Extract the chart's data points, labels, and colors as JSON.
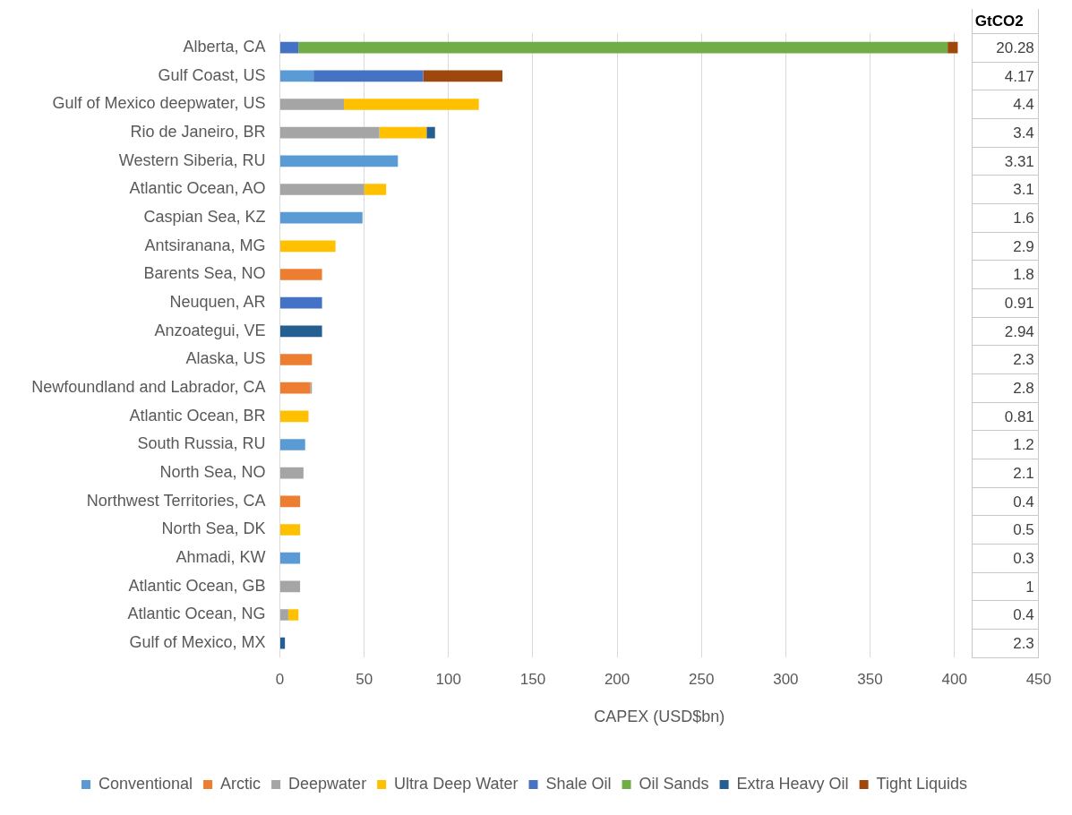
{
  "chart_data": {
    "type": "bar",
    "orientation": "horizontal",
    "stacked": true,
    "xlabel": "CAPEX (USD$bn)",
    "categories": [
      "Alberta, CA",
      "Gulf Coast, US",
      "Gulf of Mexico deepwater, US",
      "Rio de Janeiro, BR",
      "Western Siberia, RU",
      "Atlantic Ocean, AO",
      "Caspian Sea, KZ",
      "Antsiranana, MG",
      "Barents Sea, NO",
      "Neuquen, AR",
      "Anzoategui, VE",
      "Alaska, US",
      "Newfoundland and Labrador, CA",
      "Atlantic Ocean, BR",
      "South Russia, RU",
      "North Sea, NO",
      "Northwest Territories, CA",
      "North Sea, DK",
      "Ahmadi, KW",
      "Atlantic Ocean, GB",
      "Atlantic Ocean, NG",
      "Gulf of Mexico, MX"
    ],
    "series": [
      {
        "name": "Conventional",
        "color": "#5b9bd5",
        "values": [
          null,
          20,
          null,
          null,
          70,
          null,
          49,
          null,
          null,
          null,
          null,
          null,
          null,
          null,
          15,
          null,
          null,
          null,
          12,
          null,
          null,
          null
        ]
      },
      {
        "name": "Arctic",
        "color": "#ed7d31",
        "values": [
          null,
          null,
          null,
          null,
          null,
          null,
          null,
          null,
          25,
          null,
          null,
          19,
          18,
          null,
          null,
          null,
          12,
          null,
          null,
          null,
          null,
          null
        ]
      },
      {
        "name": "Deepwater",
        "color": "#a5a5a5",
        "values": [
          null,
          null,
          38,
          59,
          null,
          50,
          null,
          null,
          null,
          null,
          null,
          null,
          1,
          null,
          null,
          14,
          null,
          null,
          null,
          12,
          5,
          null
        ]
      },
      {
        "name": "Ultra Deep Water",
        "color": "#ffc000",
        "values": [
          null,
          null,
          80,
          28,
          null,
          13,
          null,
          33,
          null,
          null,
          null,
          null,
          null,
          17,
          null,
          null,
          null,
          12,
          null,
          null,
          6,
          null
        ]
      },
      {
        "name": "Shale Oil",
        "color": "#4472c4",
        "values": [
          11,
          65,
          null,
          null,
          null,
          null,
          null,
          null,
          null,
          25,
          null,
          null,
          null,
          null,
          null,
          null,
          null,
          null,
          null,
          null,
          null,
          null
        ]
      },
      {
        "name": "Oil Sands",
        "color": "#70ad47",
        "values": [
          385,
          null,
          null,
          null,
          null,
          null,
          null,
          null,
          null,
          null,
          null,
          null,
          null,
          null,
          null,
          null,
          null,
          null,
          null,
          null,
          null,
          null
        ]
      },
      {
        "name": "Extra Heavy Oil",
        "color": "#255e91",
        "values": [
          null,
          null,
          null,
          5,
          null,
          null,
          null,
          null,
          null,
          null,
          25,
          null,
          null,
          null,
          null,
          null,
          null,
          null,
          null,
          null,
          null,
          3
        ]
      },
      {
        "name": "Tight Liquids",
        "color": "#9e480e",
        "values": [
          6,
          47,
          null,
          null,
          null,
          null,
          null,
          null,
          null,
          null,
          null,
          null,
          null,
          null,
          null,
          null,
          null,
          null,
          null,
          null,
          null,
          null
        ]
      }
    ],
    "xlim": [
      0,
      450
    ],
    "xticks": [
      0,
      50,
      100,
      150,
      200,
      250,
      300,
      350,
      400,
      450
    ],
    "grid": "x",
    "legend": "bottom",
    "annotations": [
      "GtCO2",
      "20.28",
      "4.17",
      "4.4",
      "3.4",
      "3.31",
      "3.1",
      "1.6",
      "2.9",
      "1.8",
      "0.91",
      "2.94",
      "2.3",
      "2.8",
      "0.81",
      "1.2",
      "2.1",
      "0.4",
      "0.5",
      "0.3",
      "1",
      "0.4",
      "2.3"
    ]
  }
}
